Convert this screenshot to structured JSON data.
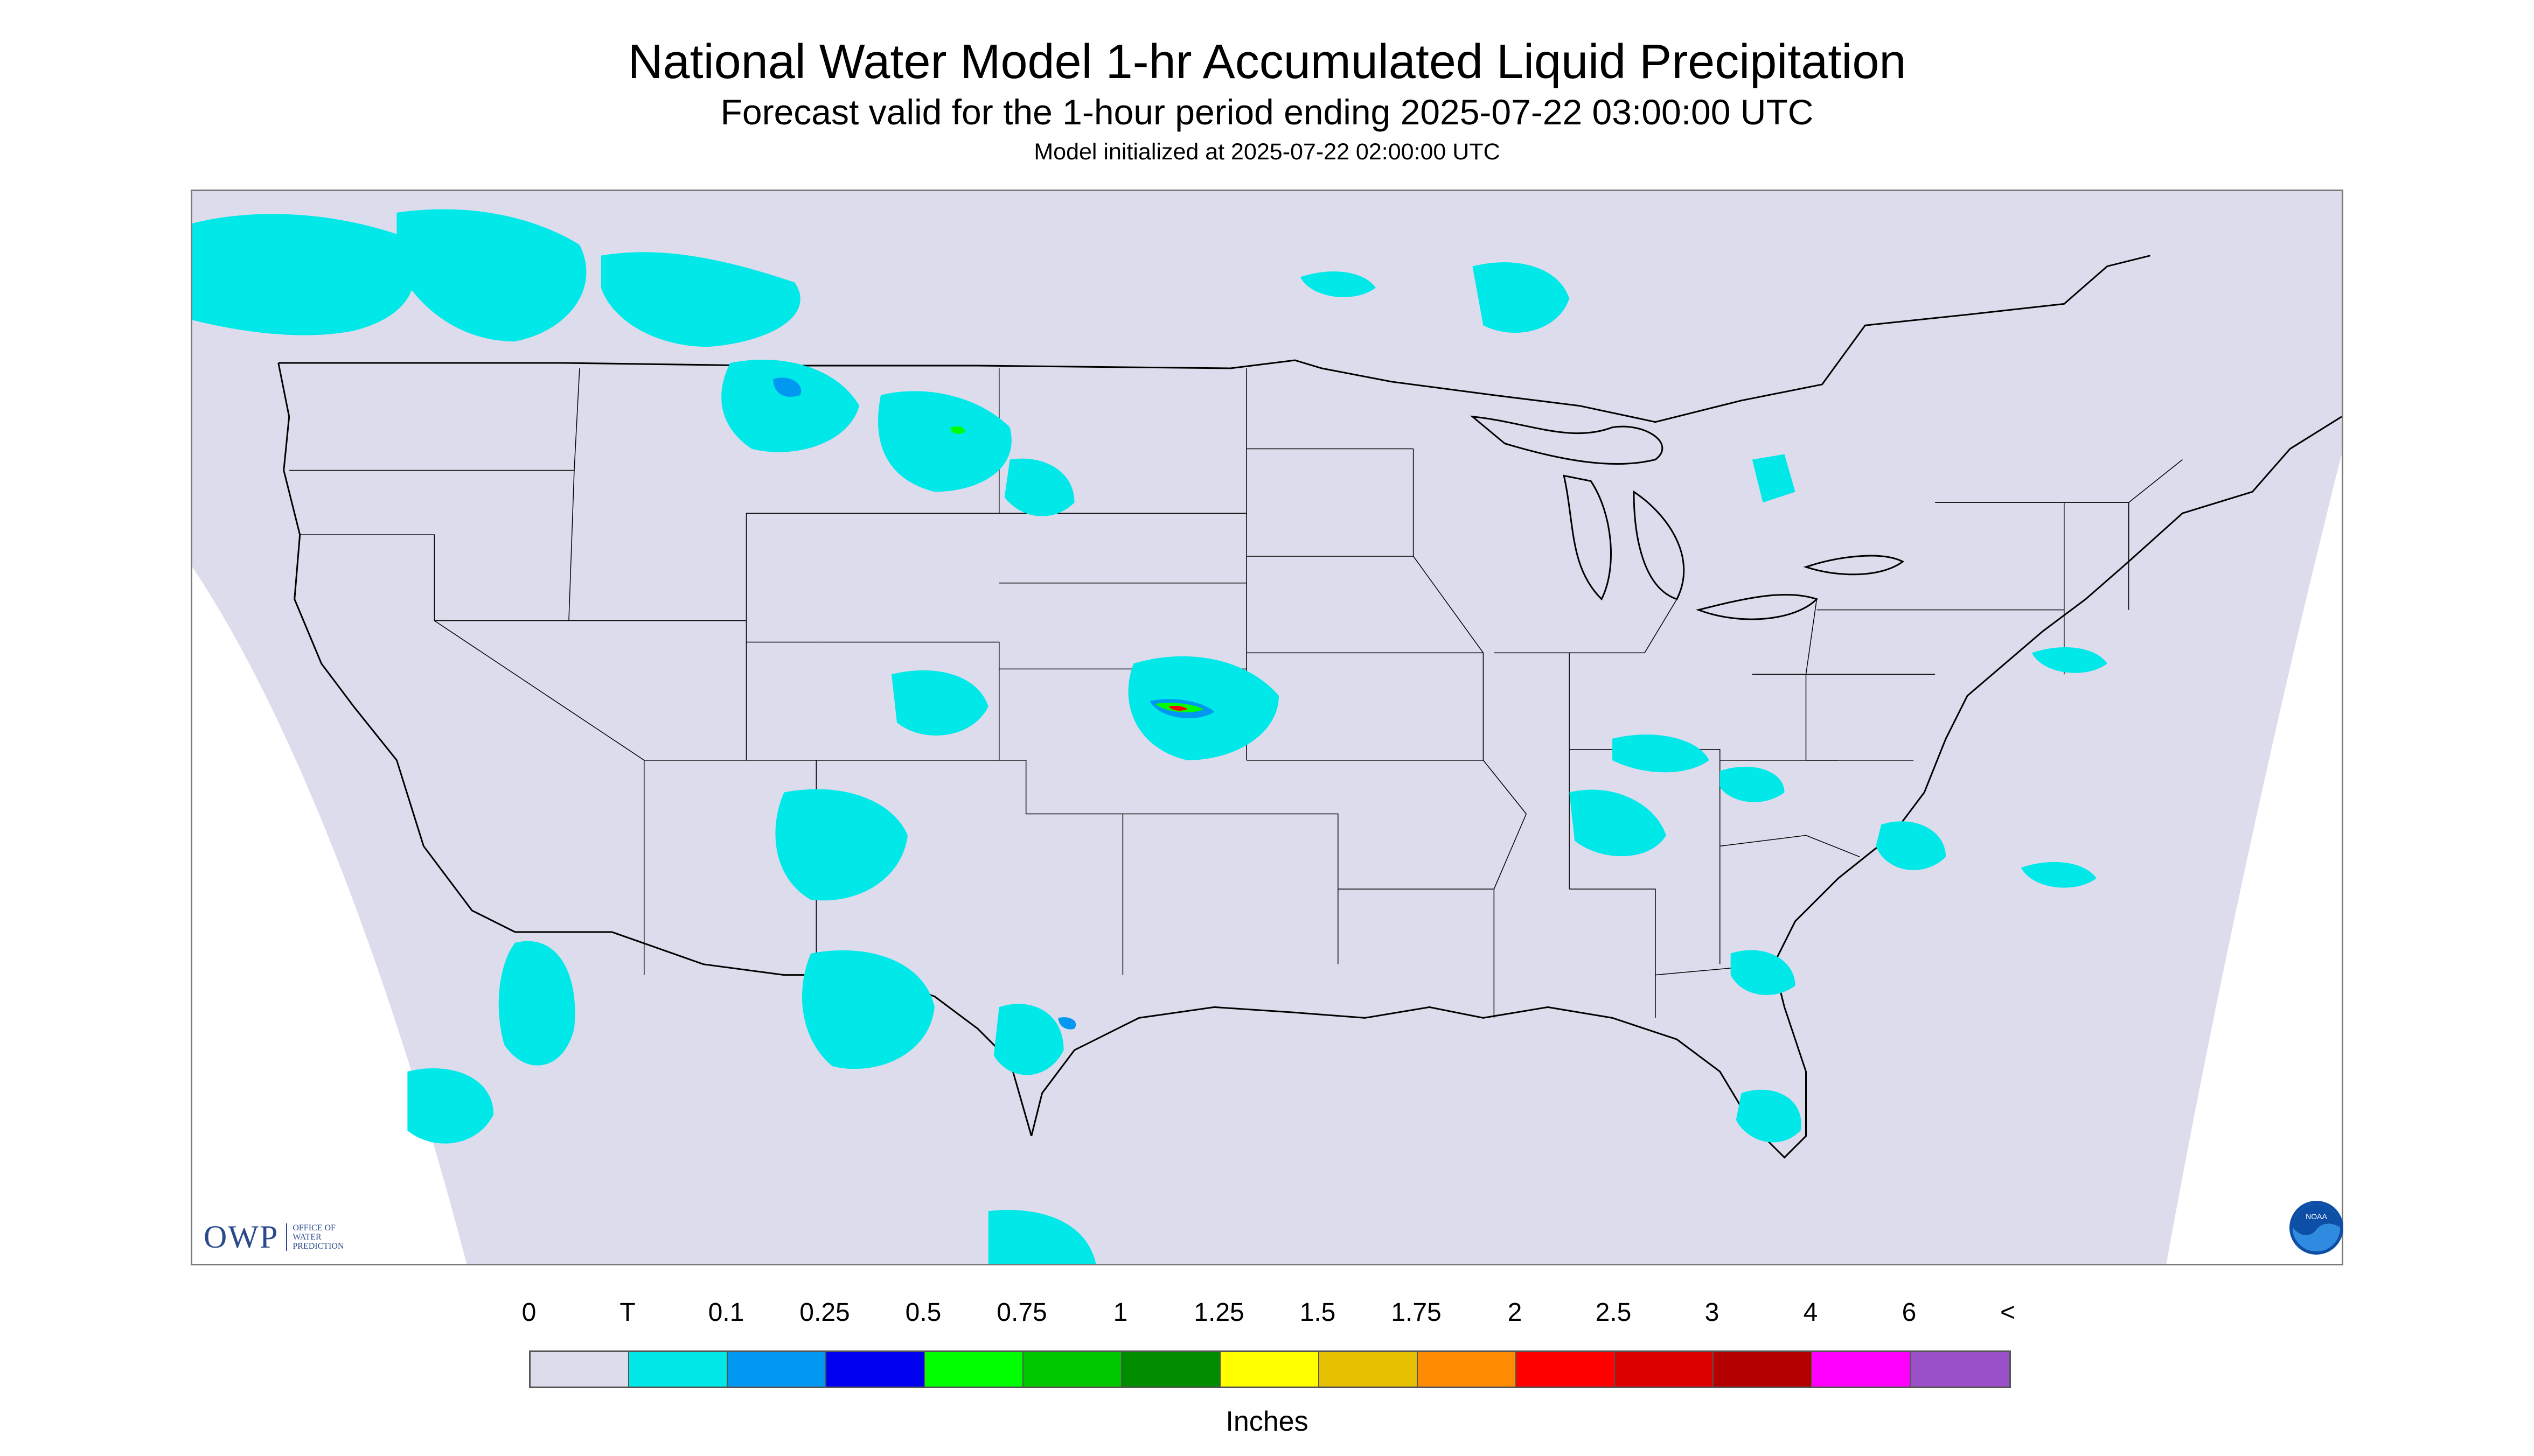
{
  "header": {
    "title": "National Water Model 1-hr Accumulated Liquid Precipitation",
    "subtitle": "Forecast valid for the 1-hour period ending 2025-07-22 03:00:00 UTC",
    "init_line": "Model initialized at 2025-07-22 02:00:00 UTC"
  },
  "logos": {
    "owp_text": "OWP",
    "owp_sub_1": "OFFICE OF",
    "owp_sub_2": "WATER",
    "owp_sub_3": "PREDICTION",
    "noaa_text": "NOAA"
  },
  "map": {
    "background_color": "#dcdcec",
    "outside_domain_color": "#ffffff",
    "border_line_color": "#000000",
    "icon": "conus-precipitation-map"
  },
  "legend": {
    "ticks": [
      "0",
      "T",
      "0.1",
      "0.25",
      "0.5",
      "0.75",
      "1",
      "1.25",
      "1.5",
      "1.75",
      "2",
      "2.5",
      "3",
      "4",
      "6",
      "<"
    ],
    "colors": [
      "#dcdcec",
      "#00e8e8",
      "#0098f0",
      "#0000f0",
      "#00ff00",
      "#00c800",
      "#008c00",
      "#ffff00",
      "#e6c000",
      "#ff8c00",
      "#ff0000",
      "#dc0000",
      "#b40000",
      "#ff00ff",
      "#9a50c8"
    ],
    "units": "Inches"
  }
}
